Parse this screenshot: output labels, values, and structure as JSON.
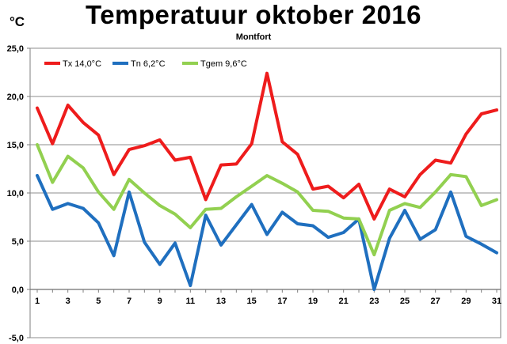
{
  "chart_data": {
    "type": "line",
    "title": "Temperatuur oktober 2016",
    "subtitle": "Montfort",
    "ylabel": "°C",
    "xlabel": "",
    "ylim": [
      -5,
      25
    ],
    "yticks": [
      "-5,0",
      "0,0",
      "5,0",
      "10,0",
      "15,0",
      "20,0",
      "25,0"
    ],
    "ytick_values": [
      -5,
      0,
      5,
      10,
      15,
      20,
      25
    ],
    "xlim": [
      1,
      31
    ],
    "xticks": [
      "1",
      "3",
      "5",
      "7",
      "9",
      "11",
      "13",
      "15",
      "17",
      "19",
      "21",
      "23",
      "25",
      "27",
      "29",
      "31"
    ],
    "xtick_values": [
      1,
      3,
      5,
      7,
      9,
      11,
      13,
      15,
      17,
      19,
      21,
      23,
      25,
      27,
      29,
      31
    ],
    "grid": true,
    "legend_position": "top-left",
    "x": [
      1,
      2,
      3,
      4,
      5,
      6,
      7,
      8,
      9,
      10,
      11,
      12,
      13,
      14,
      15,
      16,
      17,
      18,
      19,
      20,
      21,
      22,
      23,
      24,
      25,
      26,
      27,
      28,
      29,
      30,
      31
    ],
    "series": [
      {
        "name": "Tx 14,0°C",
        "color": "#ee1c1c",
        "values": [
          18.8,
          15.1,
          19.1,
          17.3,
          16.0,
          11.9,
          14.5,
          14.9,
          15.5,
          13.4,
          13.7,
          9.3,
          12.9,
          13.0,
          15.1,
          22.4,
          15.3,
          14.0,
          10.4,
          10.7,
          9.5,
          10.9,
          7.3,
          10.4,
          9.6,
          11.9,
          13.4,
          13.1,
          16.1,
          18.2,
          18.6
        ]
      },
      {
        "name": "Tn 6,2°C",
        "color": "#1f6fbf",
        "values": [
          11.8,
          8.3,
          8.9,
          8.4,
          6.9,
          3.5,
          10.1,
          4.9,
          2.6,
          4.8,
          0.4,
          7.7,
          4.6,
          6.7,
          8.8,
          5.7,
          8.0,
          6.8,
          6.6,
          5.4,
          5.9,
          7.3,
          0.0,
          5.3,
          8.2,
          5.2,
          6.2,
          10.1,
          5.5,
          4.7,
          3.8
        ]
      },
      {
        "name": "Tgem 9,6°C",
        "color": "#92d050",
        "values": [
          15.0,
          11.1,
          13.8,
          12.6,
          10.1,
          8.3,
          11.4,
          10.0,
          8.7,
          7.8,
          6.4,
          8.3,
          8.4,
          9.6,
          10.7,
          11.8,
          11.0,
          10.1,
          8.2,
          8.1,
          7.4,
          7.3,
          3.6,
          8.2,
          8.9,
          8.5,
          10.1,
          11.9,
          11.7,
          8.7,
          9.3
        ]
      }
    ]
  }
}
